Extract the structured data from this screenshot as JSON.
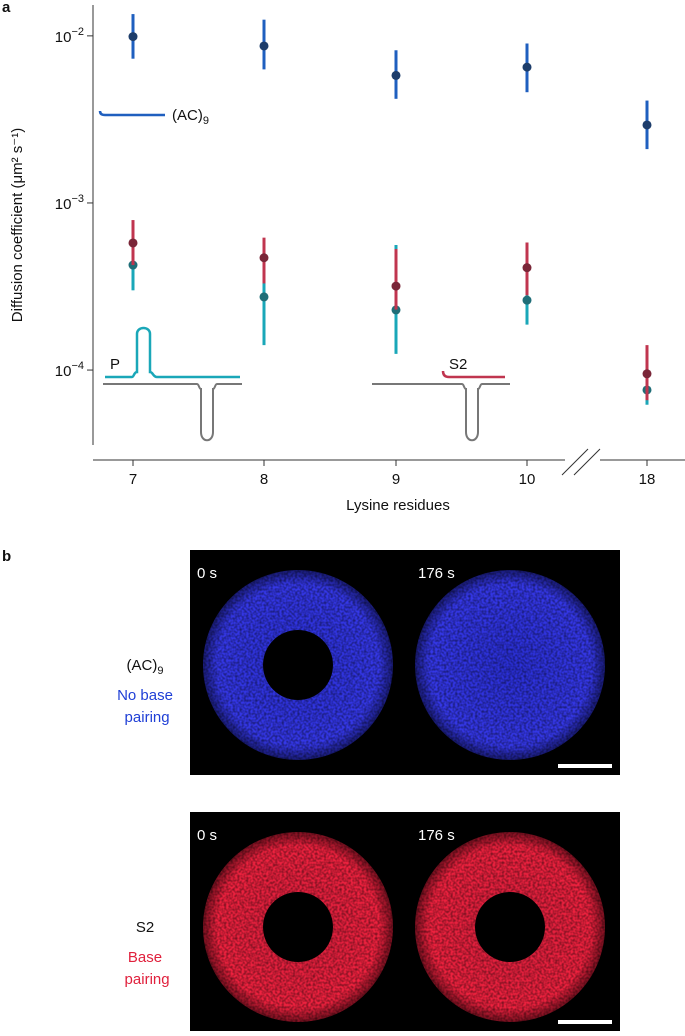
{
  "chart_data": {
    "type": "errorbar",
    "panel_label": "a",
    "categories": [
      "7",
      "8",
      "9",
      "10",
      "18"
    ],
    "x_label": "Lysine residues",
    "y_label": "Diffusion coefficient (μm² s⁻¹)",
    "log_scale": true,
    "ylim": [
      3.56e-05,
      0.0153
    ],
    "yticks": [
      {
        "value": 0.01,
        "label": "10−2"
      },
      {
        "value": 0.001,
        "label": "10−3"
      },
      {
        "value": 0.0001,
        "label": "10−4"
      }
    ],
    "series": [
      {
        "name": "P",
        "color": "#1aa7b8",
        "dot_color": "#1f6e78",
        "values": [
          0.000425,
          0.000274,
          0.000229,
          0.000262,
          7.6e-05
        ],
        "low": [
          0.0003,
          0.000141,
          0.000125,
          0.000187,
          6.2e-05
        ],
        "high": [
          0.00052,
          0.00039,
          0.00056,
          0.00039,
          0.0001
        ]
      },
      {
        "name": "S2",
        "color": "#c0354f",
        "dot_color": "#7a2638",
        "values": [
          0.000576,
          0.00047,
          0.000318,
          0.00041,
          9.5e-05
        ],
        "low": [
          0.000425,
          0.00033,
          0.00023,
          0.00028,
          6.6e-05
        ],
        "high": [
          0.00079,
          0.00062,
          0.00053,
          0.00058,
          0.000141
        ]
      },
      {
        "name": "(AC)9",
        "color": "#1f5fbf",
        "dot_color": "#1d3d6b",
        "values": [
          0.0099,
          0.0087,
          0.0058,
          0.0065,
          0.00293
        ],
        "low": [
          0.0073,
          0.0063,
          0.0042,
          0.0046,
          0.0021
        ],
        "high": [
          0.0135,
          0.0125,
          0.0082,
          0.009,
          0.0041
        ]
      }
    ]
  },
  "panel_b": {
    "panel_label": "b",
    "rows": [
      {
        "name": "(AC)9",
        "description": "No base pairing",
        "times": [
          "0 s",
          "176 s"
        ]
      },
      {
        "name": "S2",
        "description": "Base pairing",
        "times": [
          "0 s",
          "176 s"
        ]
      }
    ]
  }
}
